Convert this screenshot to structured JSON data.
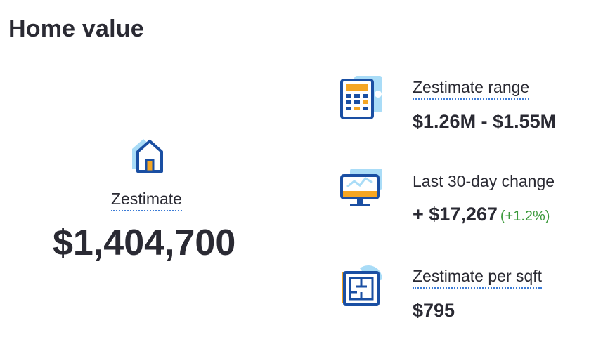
{
  "section": {
    "title": "Home value"
  },
  "zestimate": {
    "label": "Zestimate",
    "value": "$1,404,700",
    "icon": "house-icon"
  },
  "stats": {
    "range": {
      "label": "Zestimate range",
      "value": "$1.26M - $1.55M",
      "icon": "calculator-icon"
    },
    "change": {
      "label": "Last 30-day change",
      "value": "+ $17,267",
      "percent": "(+1.2%)",
      "icon": "monitor-chart-icon"
    },
    "per_sqft": {
      "label": "Zestimate per sqft",
      "value": "$795",
      "icon": "floorplan-icon"
    }
  },
  "colors": {
    "accent_blue": "#1a4fa3",
    "light_blue": "#a9dcf7",
    "orange": "#f5a623",
    "positive_green": "#3c9a3c",
    "text": "#2a2a33"
  }
}
